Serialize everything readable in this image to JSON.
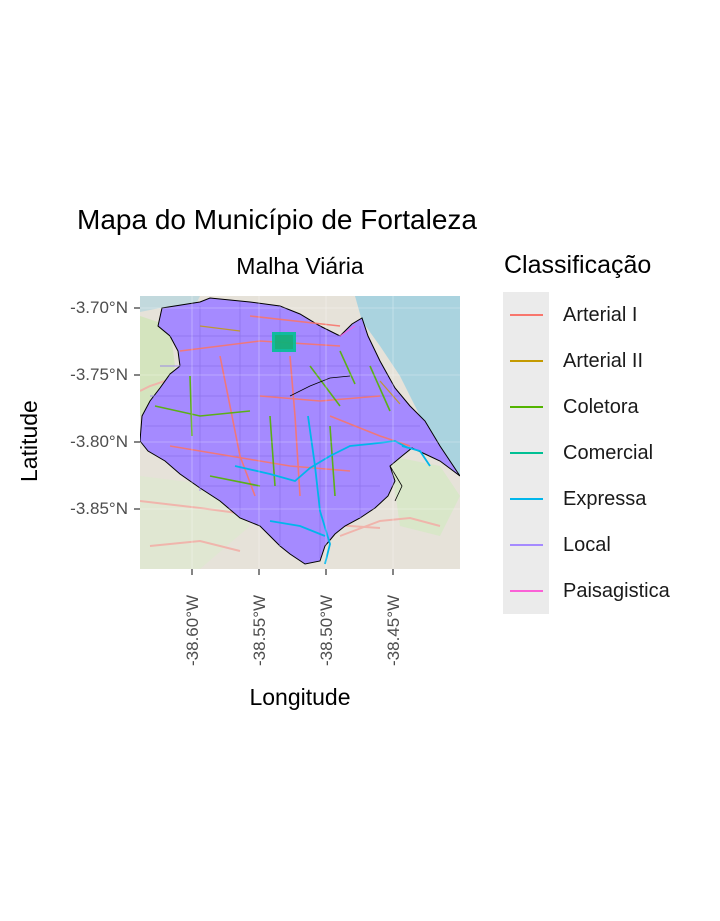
{
  "title": "Mapa do Município de Fortaleza",
  "subtitle": "Malha Viária",
  "axes": {
    "xlabel": "Longitude",
    "ylabel": "Latitude",
    "xticks": [
      "-38.60°W",
      "-38.55°W",
      "-38.50°W",
      "-38.45°W"
    ],
    "yticks": [
      "-3.70°N",
      "-3.75°N",
      "-3.80°N",
      "-3.85°N"
    ]
  },
  "legend": {
    "title": "Classificação",
    "items": [
      {
        "label": "Arterial I",
        "color": "#F8766D"
      },
      {
        "label": "Arterial II",
        "color": "#C49A00"
      },
      {
        "label": "Coletora",
        "color": "#53B400"
      },
      {
        "label": "Comercial",
        "color": "#00C094"
      },
      {
        "label": "Expressa",
        "color": "#00B6EB"
      },
      {
        "label": "Local",
        "color": "#A58AFF"
      },
      {
        "label": "Paisagistica",
        "color": "#FB61D7"
      }
    ]
  },
  "map": {
    "basemap_colors": {
      "land": "#e8e4dc",
      "water": "#aad3df",
      "park": "#c8e6b0"
    },
    "boundary_color": "#000000"
  }
}
